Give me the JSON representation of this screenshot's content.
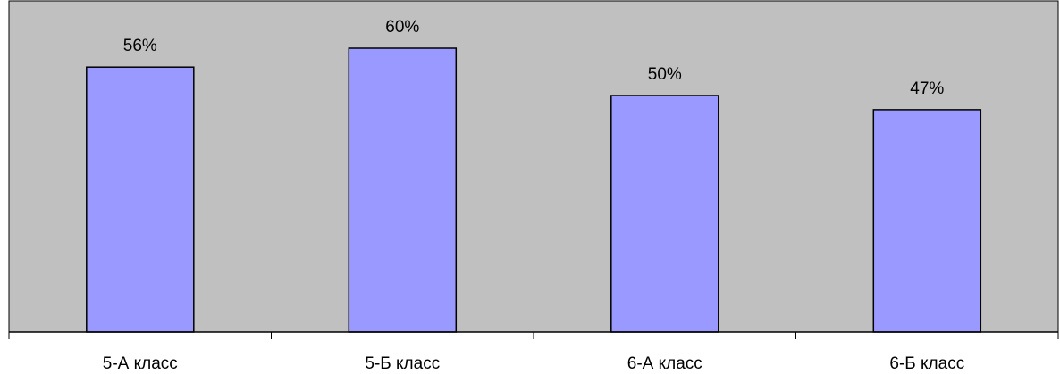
{
  "chart_data": {
    "type": "bar",
    "categories": [
      "5-А класс",
      "5-Б класс",
      "6-А класс",
      "6-Б класс"
    ],
    "values": [
      56,
      60,
      50,
      47
    ],
    "data_labels": [
      "56%",
      "60%",
      "50%",
      "47%"
    ],
    "unit": "%",
    "ylim": [
      0,
      70
    ],
    "grid": false,
    "legend": "none"
  },
  "colors": {
    "plot_background": "#c0c0c0",
    "bar_fill": "#9999ff",
    "bar_stroke": "#000000",
    "axis": "#000000"
  }
}
